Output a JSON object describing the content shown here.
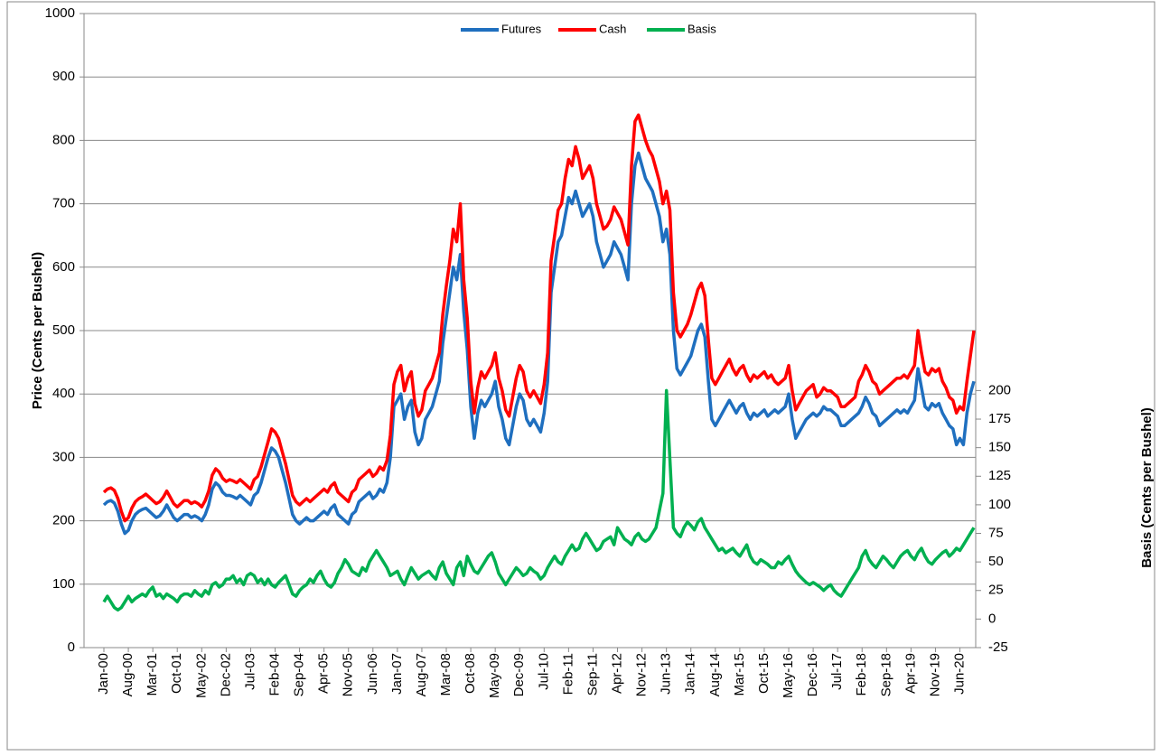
{
  "chart_data": {
    "type": "line",
    "y_label": "Price (Cents per Bushel)",
    "y2_label": "Basis (Cents per Bushel)",
    "ylim": [
      0,
      1000
    ],
    "yticks": [
      0,
      100,
      200,
      300,
      400,
      500,
      600,
      700,
      800,
      900,
      1000
    ],
    "y2lim": [
      -25,
      530
    ],
    "y2ticks": [
      -25,
      0,
      25,
      50,
      75,
      100,
      125,
      150,
      175,
      200
    ],
    "grid": true,
    "legend": "top",
    "categories": [
      "Jan-00",
      null,
      null,
      null,
      null,
      null,
      null,
      "Aug-00",
      null,
      null,
      null,
      null,
      null,
      null,
      "Mar-01",
      null,
      null,
      null,
      null,
      null,
      null,
      "Oct-01",
      null,
      null,
      null,
      null,
      null,
      null,
      "May-02",
      null,
      null,
      null,
      null,
      null,
      null,
      "Dec-02",
      null,
      null,
      null,
      null,
      null,
      null,
      "Jul-03",
      null,
      null,
      null,
      null,
      null,
      null,
      "Feb-04",
      null,
      null,
      null,
      null,
      null,
      null,
      "Sep-04",
      null,
      null,
      null,
      null,
      null,
      null,
      "Apr-05",
      null,
      null,
      null,
      null,
      null,
      null,
      "Nov-05",
      null,
      null,
      null,
      null,
      null,
      null,
      "Jun-06",
      null,
      null,
      null,
      null,
      null,
      null,
      "Jan-07",
      null,
      null,
      null,
      null,
      null,
      null,
      "Aug-07",
      null,
      null,
      null,
      null,
      null,
      null,
      "Mar-08",
      null,
      null,
      null,
      null,
      null,
      null,
      "Oct-08",
      null,
      null,
      null,
      null,
      null,
      null,
      "May-09",
      null,
      null,
      null,
      null,
      null,
      null,
      "Dec-09",
      null,
      null,
      null,
      null,
      null,
      null,
      "Jul-10",
      null,
      null,
      null,
      null,
      null,
      null,
      "Feb-11",
      null,
      null,
      null,
      null,
      null,
      null,
      "Sep-11",
      null,
      null,
      null,
      null,
      null,
      null,
      "Apr-12",
      null,
      null,
      null,
      null,
      null,
      null,
      "Nov-12",
      null,
      null,
      null,
      null,
      null,
      null,
      "Jun-13",
      null,
      null,
      null,
      null,
      null,
      null,
      "Jan-14",
      null,
      null,
      null,
      null,
      null,
      null,
      "Aug-14",
      null,
      null,
      null,
      null,
      null,
      null,
      "Mar-15",
      null,
      null,
      null,
      null,
      null,
      null,
      "Oct-15",
      null,
      null,
      null,
      null,
      null,
      null,
      "May-16",
      null,
      null,
      null,
      null,
      null,
      null,
      "Dec-16",
      null,
      null,
      null,
      null,
      null,
      null,
      "Jul-17",
      null,
      null,
      null,
      null,
      null,
      null,
      "Feb-18",
      null,
      null,
      null,
      null,
      null,
      null,
      "Sep-18",
      null,
      null,
      null,
      null,
      null,
      null,
      "Apr-19",
      null,
      null,
      null,
      null,
      null,
      null,
      "Nov-19",
      null,
      null,
      null,
      null,
      null,
      null,
      "Jun-20",
      null,
      null,
      null,
      null
    ],
    "series": [
      {
        "name": "Futures",
        "color": "#1f6fbf",
        "values": [
          225,
          230,
          232,
          228,
          215,
          195,
          180,
          185,
          200,
          210,
          215,
          218,
          220,
          215,
          210,
          205,
          208,
          215,
          225,
          215,
          205,
          200,
          205,
          210,
          210,
          205,
          208,
          205,
          200,
          210,
          225,
          250,
          260,
          255,
          245,
          240,
          240,
          238,
          235,
          240,
          235,
          230,
          225,
          240,
          245,
          260,
          280,
          300,
          315,
          310,
          300,
          280,
          260,
          235,
          210,
          200,
          195,
          200,
          205,
          200,
          200,
          205,
          210,
          215,
          210,
          220,
          225,
          210,
          205,
          200,
          195,
          210,
          215,
          230,
          235,
          240,
          245,
          235,
          240,
          250,
          245,
          260,
          300,
          380,
          390,
          400,
          360,
          380,
          390,
          340,
          320,
          330,
          360,
          370,
          380,
          400,
          420,
          480,
          520,
          560,
          600,
          580,
          620,
          530,
          470,
          380,
          330,
          370,
          390,
          380,
          390,
          400,
          420,
          380,
          360,
          330,
          320,
          350,
          380,
          400,
          390,
          360,
          350,
          360,
          350,
          340,
          370,
          420,
          560,
          600,
          640,
          650,
          680,
          710,
          700,
          720,
          700,
          680,
          690,
          700,
          680,
          640,
          620,
          600,
          610,
          620,
          640,
          630,
          620,
          600,
          580,
          700,
          760,
          780,
          760,
          740,
          730,
          720,
          700,
          680,
          640,
          660,
          620,
          500,
          440,
          430,
          440,
          450,
          460,
          480,
          500,
          510,
          490,
          420,
          360,
          350,
          360,
          370,
          380,
          390,
          380,
          370,
          380,
          385,
          370,
          360,
          370,
          365,
          370,
          375,
          365,
          370,
          375,
          370,
          375,
          380,
          400,
          360,
          330,
          340,
          350,
          360,
          365,
          370,
          365,
          370,
          380,
          375,
          375,
          370,
          365,
          350,
          350,
          355,
          360,
          365,
          370,
          380,
          395,
          385,
          370,
          365,
          350,
          355,
          360,
          365,
          370,
          375,
          370,
          375,
          370,
          380,
          390,
          440,
          410,
          380,
          375,
          385,
          380,
          385,
          370,
          360,
          350,
          345,
          320,
          330,
          320,
          370,
          400,
          420
        ]
      },
      {
        "name": "Cash",
        "color": "#ff0000",
        "values": [
          245,
          250,
          252,
          248,
          235,
          215,
          200,
          205,
          220,
          230,
          235,
          238,
          242,
          237,
          232,
          227,
          230,
          237,
          247,
          237,
          227,
          222,
          227,
          232,
          232,
          227,
          230,
          227,
          222,
          232,
          247,
          272,
          282,
          277,
          267,
          262,
          265,
          263,
          260,
          265,
          260,
          255,
          250,
          265,
          270,
          285,
          305,
          325,
          345,
          340,
          330,
          310,
          290,
          265,
          240,
          230,
          225,
          230,
          235,
          230,
          235,
          240,
          245,
          250,
          245,
          255,
          260,
          245,
          240,
          235,
          230,
          245,
          250,
          265,
          270,
          275,
          280,
          270,
          275,
          285,
          280,
          295,
          335,
          415,
          435,
          445,
          405,
          425,
          435,
          385,
          365,
          375,
          405,
          415,
          425,
          445,
          465,
          525,
          570,
          610,
          660,
          640,
          700,
          580,
          520,
          420,
          370,
          410,
          435,
          425,
          435,
          445,
          465,
          425,
          405,
          375,
          365,
          395,
          425,
          445,
          435,
          405,
          395,
          405,
          395,
          385,
          415,
          465,
          610,
          650,
          690,
          700,
          740,
          770,
          760,
          790,
          770,
          740,
          750,
          760,
          740,
          700,
          680,
          660,
          665,
          675,
          695,
          685,
          675,
          655,
          635,
          760,
          830,
          840,
          820,
          800,
          785,
          775,
          755,
          735,
          700,
          720,
          690,
          560,
          500,
          490,
          500,
          510,
          525,
          545,
          565,
          575,
          555,
          485,
          425,
          415,
          425,
          435,
          445,
          455,
          440,
          430,
          440,
          445,
          430,
          420,
          430,
          425,
          430,
          435,
          425,
          430,
          420,
          415,
          420,
          425,
          445,
          405,
          375,
          385,
          395,
          405,
          410,
          415,
          395,
          400,
          410,
          405,
          405,
          400,
          395,
          380,
          380,
          385,
          390,
          395,
          420,
          430,
          445,
          435,
          420,
          415,
          400,
          405,
          410,
          415,
          420,
          425,
          425,
          430,
          425,
          435,
          445,
          500,
          465,
          435,
          430,
          440,
          435,
          440,
          420,
          410,
          395,
          390,
          370,
          380,
          375,
          420,
          460,
          500
        ]
      },
      {
        "name": "Basis",
        "color": "#00b050",
        "axis": "y2",
        "values": [
          15,
          20,
          15,
          10,
          8,
          10,
          15,
          20,
          15,
          18,
          20,
          22,
          20,
          25,
          28,
          20,
          22,
          18,
          22,
          20,
          18,
          15,
          20,
          22,
          22,
          20,
          25,
          22,
          20,
          25,
          22,
          30,
          32,
          28,
          30,
          35,
          35,
          38,
          32,
          35,
          30,
          38,
          40,
          38,
          32,
          35,
          30,
          35,
          30,
          28,
          32,
          35,
          38,
          30,
          22,
          20,
          25,
          28,
          30,
          35,
          32,
          38,
          42,
          35,
          30,
          28,
          32,
          40,
          45,
          52,
          48,
          42,
          40,
          38,
          45,
          42,
          50,
          55,
          60,
          55,
          50,
          45,
          38,
          40,
          42,
          35,
          30,
          38,
          45,
          40,
          35,
          38,
          40,
          42,
          38,
          35,
          45,
          50,
          40,
          35,
          30,
          45,
          50,
          38,
          55,
          48,
          42,
          40,
          45,
          50,
          55,
          58,
          50,
          40,
          35,
          30,
          35,
          40,
          45,
          42,
          38,
          40,
          45,
          42,
          40,
          35,
          38,
          45,
          50,
          55,
          50,
          48,
          55,
          60,
          65,
          60,
          62,
          70,
          75,
          70,
          65,
          60,
          62,
          68,
          70,
          72,
          65,
          80,
          75,
          70,
          68,
          65,
          72,
          75,
          70,
          68,
          70,
          75,
          80,
          95,
          110,
          200,
          140,
          80,
          75,
          72,
          80,
          85,
          82,
          78,
          85,
          88,
          80,
          75,
          70,
          65,
          60,
          62,
          58,
          60,
          62,
          58,
          55,
          60,
          65,
          55,
          50,
          48,
          52,
          50,
          48,
          45,
          45,
          50,
          48,
          52,
          55,
          48,
          42,
          38,
          35,
          32,
          30,
          32,
          30,
          28,
          25,
          28,
          30,
          25,
          22,
          20,
          25,
          30,
          35,
          40,
          45,
          55,
          60,
          52,
          48,
          45,
          50,
          55,
          52,
          48,
          45,
          50,
          55,
          58,
          60,
          55,
          52,
          58,
          62,
          55,
          50,
          48,
          52,
          55,
          58,
          60,
          55,
          58,
          62,
          60,
          65,
          70,
          75,
          80
        ]
      }
    ]
  }
}
